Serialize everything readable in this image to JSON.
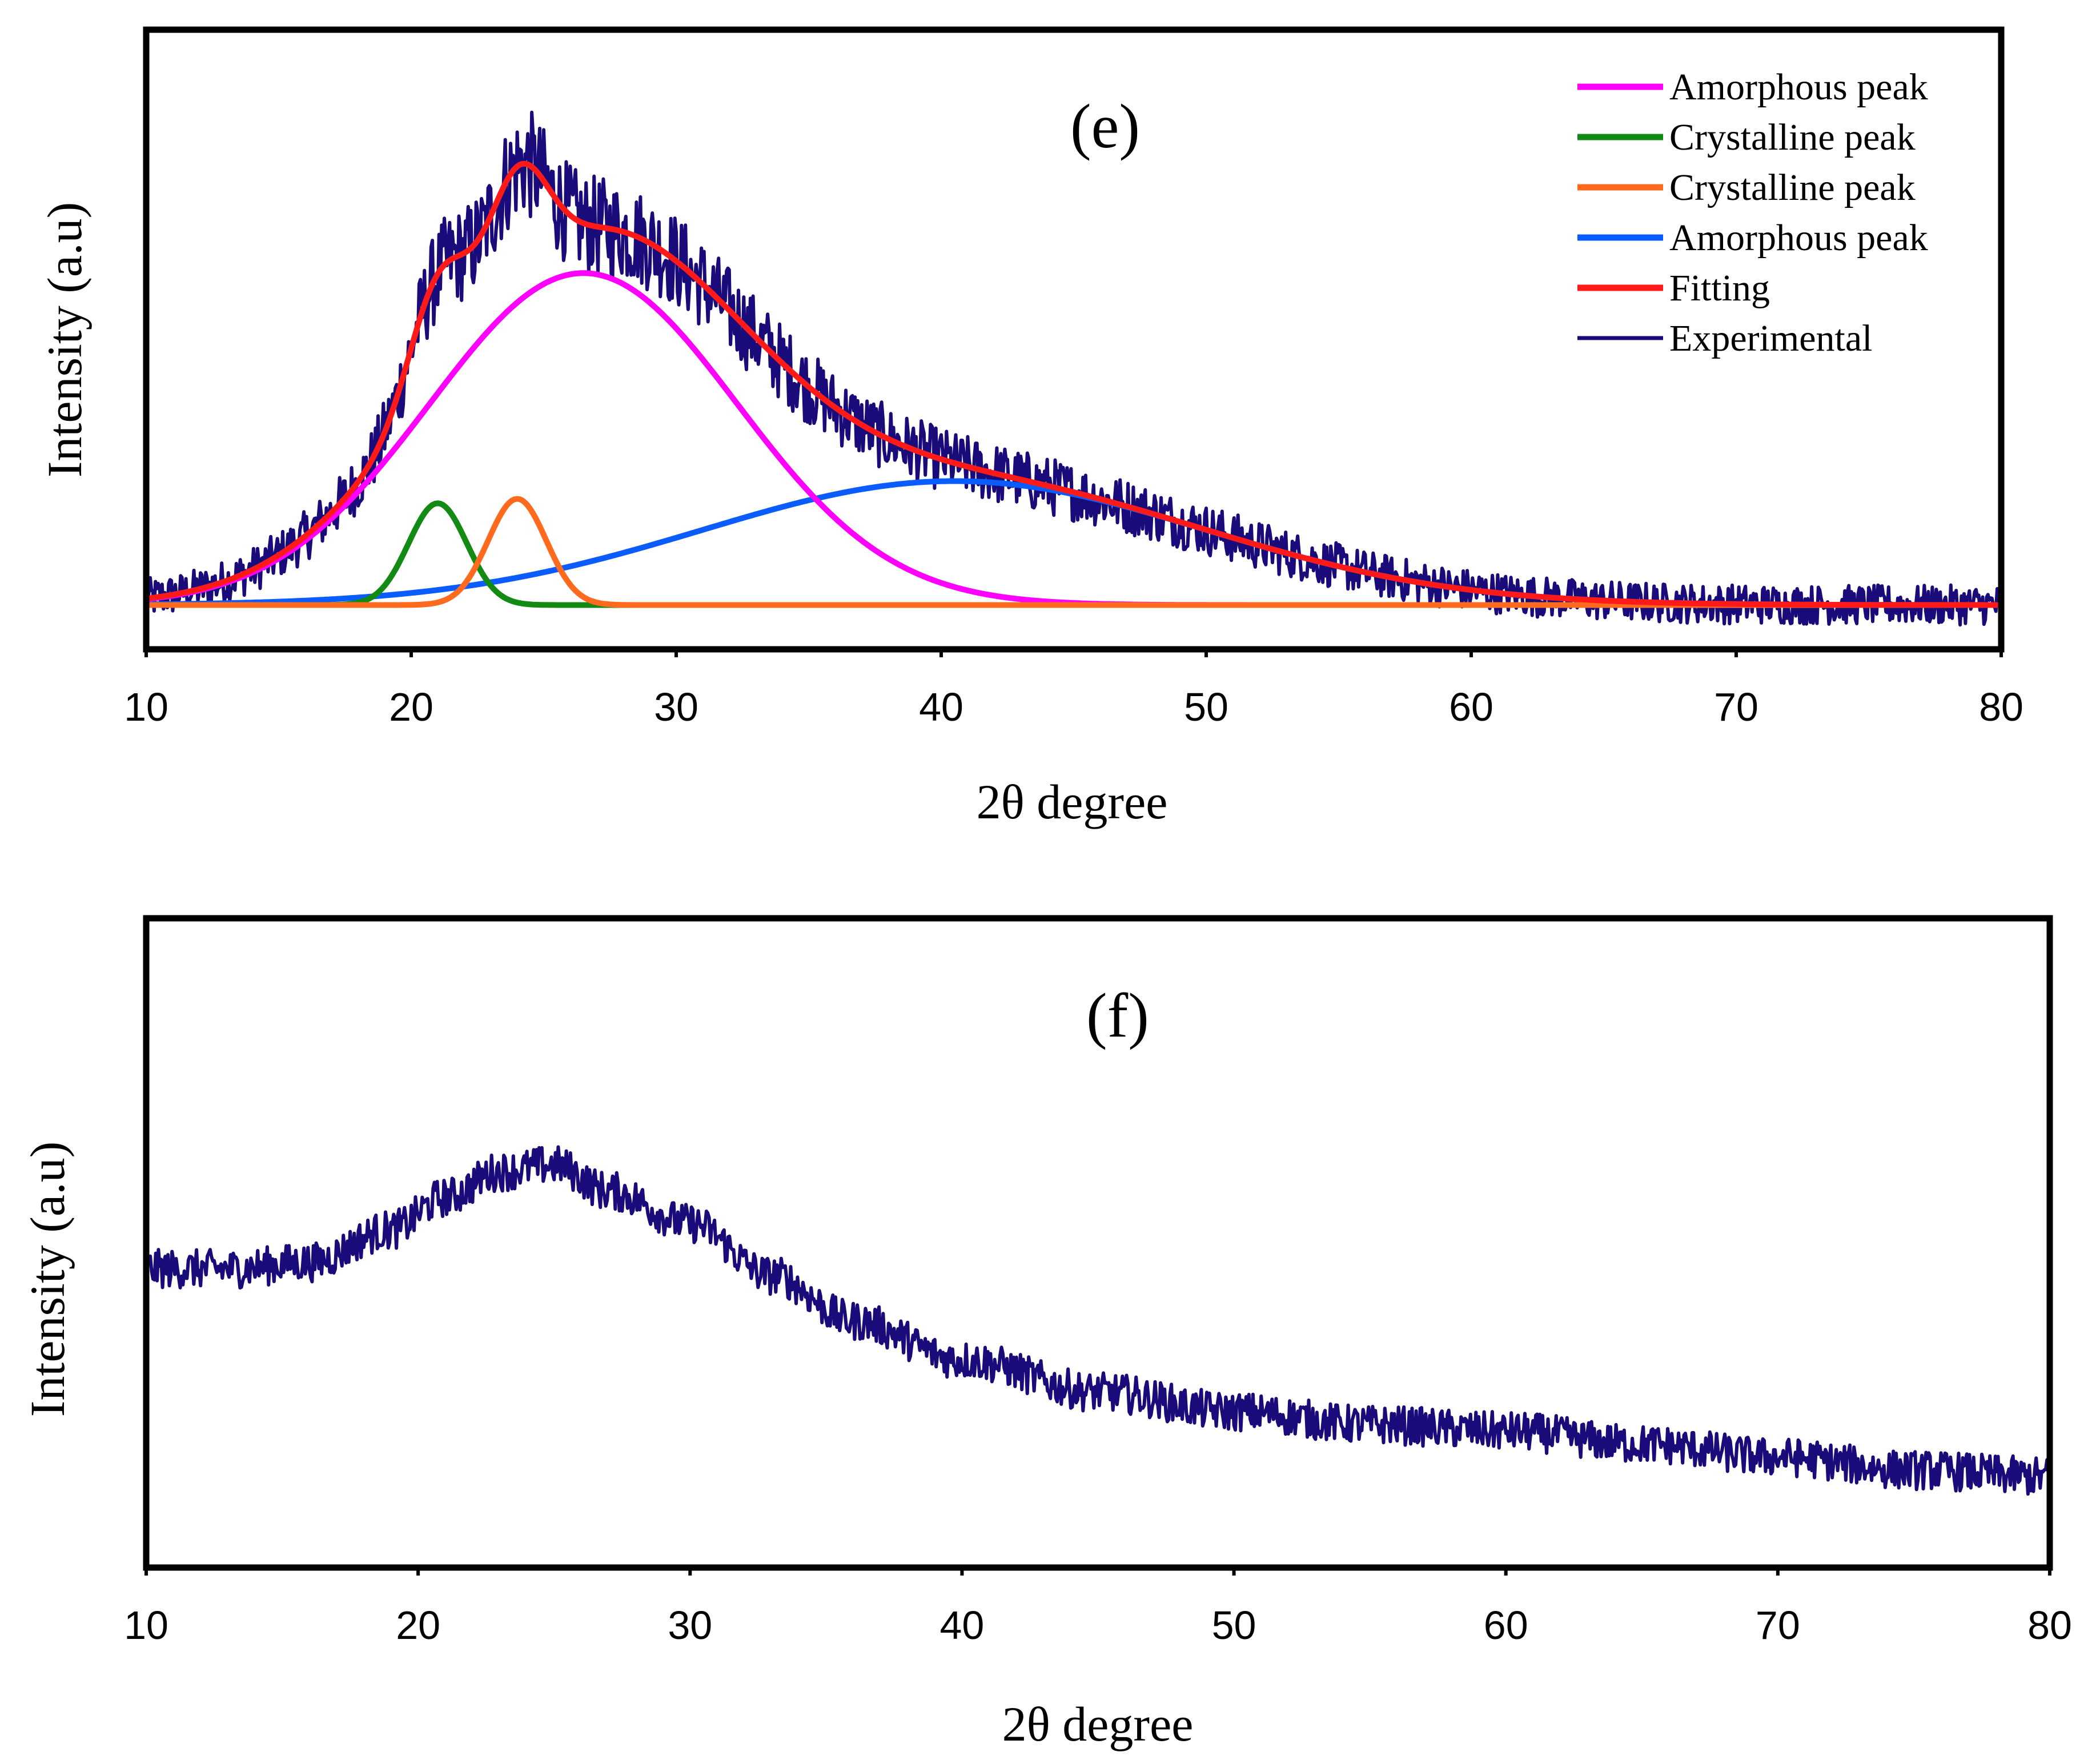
{
  "chart_data": [
    {
      "type": "line",
      "panel_label": "(e)",
      "xlabel": "2θ degree",
      "ylabel": "Intensity (a.u)",
      "xlim": [
        10,
        80
      ],
      "ylim": [
        -0.1,
        1.3
      ],
      "xticks": [
        "10",
        "20",
        "30",
        "40",
        "50",
        "60",
        "70",
        "80"
      ],
      "grid": false,
      "legend_position": "top-right",
      "series": [
        {
          "name": "Amorphous peak",
          "color": "#ff00ff",
          "kind": "gaussian",
          "center": 26.5,
          "height": 0.75,
          "width": 5.8
        },
        {
          "name": "Crystalline peak",
          "color": "#138a13",
          "kind": "gaussian",
          "center": 21.0,
          "height": 0.23,
          "width": 1.1
        },
        {
          "name": "Crystalline peak",
          "color": "#ff6a1f",
          "kind": "gaussian",
          "center": 24.0,
          "height": 0.24,
          "width": 1.1
        },
        {
          "name": "Amorphous peak",
          "color": "#0a5cff",
          "kind": "gaussian",
          "center": 40.5,
          "height": 0.28,
          "width": 9.5
        },
        {
          "name": "Fitting",
          "color": "#ff1a1a",
          "kind": "sum"
        },
        {
          "name": "Experimental",
          "color": "#1a0b7a",
          "kind": "noisy",
          "noise": 0.045,
          "points": 1400
        }
      ]
    },
    {
      "type": "line",
      "panel_label": "(f)",
      "xlabel": "2θ degree",
      "ylabel": "Intensity (a.u)",
      "xlim": [
        10,
        80
      ],
      "ylim": [
        0,
        1.0
      ],
      "xticks": [
        "10",
        "20",
        "30",
        "40",
        "50",
        "60",
        "70",
        "80"
      ],
      "grid": false,
      "series": [
        {
          "name": "Experimental",
          "color": "#1a0b7a",
          "x": [
            10,
            13,
            16,
            19,
            21,
            23,
            25,
            27,
            30,
            33,
            36,
            40,
            45,
            50,
            55,
            60,
            65,
            70,
            75,
            80
          ],
          "y": [
            0.46,
            0.46,
            0.47,
            0.52,
            0.57,
            0.61,
            0.62,
            0.58,
            0.53,
            0.45,
            0.38,
            0.32,
            0.27,
            0.24,
            0.22,
            0.21,
            0.19,
            0.17,
            0.15,
            0.14
          ],
          "noise": 0.03,
          "points": 1400
        }
      ]
    }
  ]
}
